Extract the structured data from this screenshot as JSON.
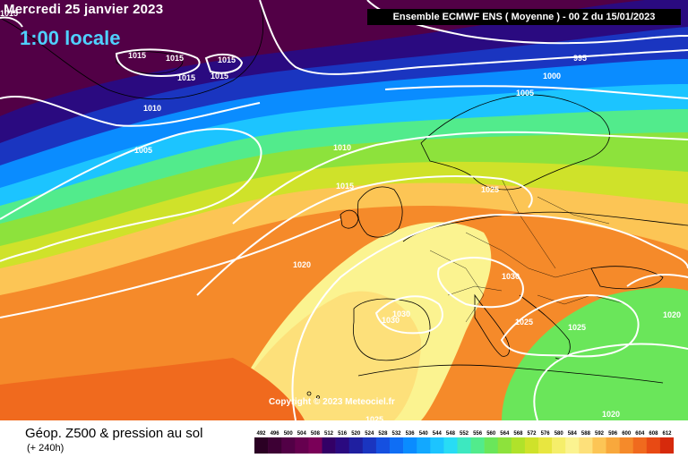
{
  "header": {
    "date": "Mercredi 25 janvier 2023",
    "time": "1:00 locale",
    "run": "Ensemble ECMWF ENS  ( Moyenne )  -  00 Z du 15/01/2023"
  },
  "copyright": "Copyright © 2023 Meteociel.fr",
  "footer": {
    "title": "Géop. Z500 & pression au sol",
    "subtitle": "(+ 240h)"
  },
  "isobar_labels": [
    "1015",
    "1015",
    "1015",
    "1015",
    "1015",
    "1015",
    "1010",
    "1010",
    "1005",
    "1010",
    "1015",
    "1020",
    "1025",
    "1030",
    "1030",
    "1030",
    "1025",
    "1025",
    "1020",
    "1020",
    "1025",
    "995",
    "1000",
    "1005"
  ],
  "legend": {
    "values": [
      "492",
      "496",
      "500",
      "504",
      "508",
      "512",
      "516",
      "520",
      "524",
      "528",
      "532",
      "536",
      "540",
      "544",
      "548",
      "552",
      "556",
      "560",
      "564",
      "568",
      "572",
      "576",
      "580",
      "584",
      "588",
      "592",
      "596",
      "600",
      "604",
      "608",
      "612"
    ],
    "colors": [
      "#2b0024",
      "#3d0034",
      "#520046",
      "#66004f",
      "#7a0058",
      "#330066",
      "#2a0a80",
      "#1f1fa0",
      "#1a35c0",
      "#1550e0",
      "#0f6ef5",
      "#0a8cff",
      "#12a8ff",
      "#1cc4ff",
      "#28dcf5",
      "#3de8c0",
      "#52eb8c",
      "#6ae65a",
      "#8de23c",
      "#b0e22a",
      "#cfe22a",
      "#e8e640",
      "#f5ee6a",
      "#fbf390",
      "#fde07a",
      "#fcc555",
      "#f8a83c",
      "#f58a2a",
      "#f06a1e",
      "#e84a14",
      "#d62a0c"
    ]
  }
}
